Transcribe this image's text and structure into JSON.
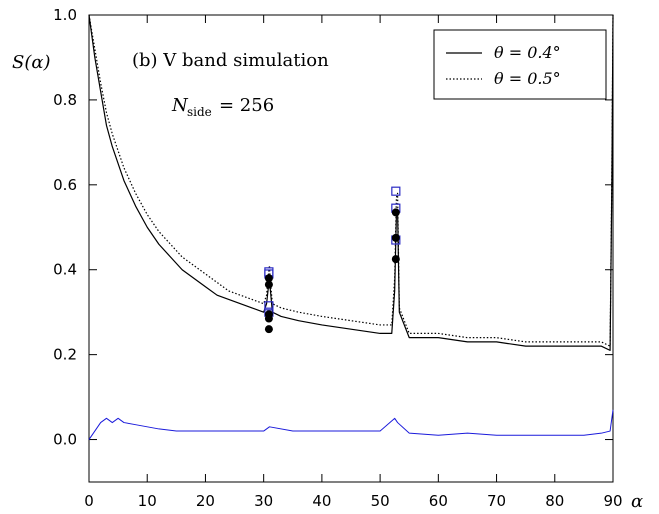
{
  "chart_data": {
    "type": "line",
    "title": "(b) V band simulation",
    "annotation": "N",
    "annotation_sub": "side",
    "annotation_value": "= 256",
    "ylabel": "S(α)",
    "xlabel": "α",
    "xlim": [
      0,
      90
    ],
    "ylim": [
      -0.1,
      1.0
    ],
    "x_ticks": [
      0,
      10,
      20,
      30,
      40,
      50,
      60,
      70,
      80,
      90
    ],
    "y_ticks": [
      0.0,
      0.2,
      0.4,
      0.6,
      0.8,
      1.0
    ],
    "y_tick_labels": [
      "0.0",
      "0.2",
      "0.4",
      "0.6",
      "0.8",
      "1.0"
    ],
    "legend_position": "top-right",
    "grid": false,
    "colors": {
      "solid": "#000000",
      "dotted": "#000000",
      "difference": "#1a1adb",
      "squares": "#2a2ac4",
      "dots": "#000000"
    },
    "series": [
      {
        "name": "θ = 0.4°",
        "style": "solid",
        "x": [
          0,
          1,
          2,
          3,
          4,
          5,
          6,
          8,
          10,
          12,
          14,
          16,
          18,
          20,
          22,
          24,
          26,
          28,
          30,
          30.5,
          30.9,
          31,
          31.1,
          31.5,
          33,
          36,
          40,
          45,
          50,
          52,
          52.5,
          52.8,
          53,
          53.3,
          55,
          60,
          65,
          70,
          75,
          80,
          85,
          88,
          89.5,
          89.8,
          90
        ],
        "y": [
          1.0,
          0.9,
          0.82,
          0.74,
          0.69,
          0.65,
          0.61,
          0.55,
          0.5,
          0.46,
          0.43,
          0.4,
          0.38,
          0.36,
          0.34,
          0.33,
          0.32,
          0.31,
          0.3,
          0.32,
          0.37,
          0.38,
          0.36,
          0.3,
          0.29,
          0.28,
          0.27,
          0.26,
          0.25,
          0.25,
          0.35,
          0.53,
          0.54,
          0.3,
          0.24,
          0.24,
          0.23,
          0.23,
          0.22,
          0.22,
          0.22,
          0.22,
          0.21,
          0.6,
          1.0
        ]
      },
      {
        "name": "θ = 0.5°",
        "style": "dotted",
        "x": [
          0,
          1,
          2,
          3,
          4,
          5,
          6,
          8,
          10,
          12,
          14,
          16,
          18,
          20,
          22,
          24,
          26,
          28,
          30,
          30.5,
          30.9,
          31,
          31.1,
          31.5,
          33,
          36,
          40,
          45,
          50,
          52,
          52.5,
          52.8,
          53,
          53.3,
          55,
          60,
          65,
          70,
          75,
          80,
          85,
          88,
          89.5,
          89.8,
          90
        ],
        "y": [
          1.0,
          0.92,
          0.84,
          0.77,
          0.72,
          0.68,
          0.64,
          0.58,
          0.53,
          0.49,
          0.46,
          0.43,
          0.41,
          0.39,
          0.37,
          0.35,
          0.34,
          0.33,
          0.32,
          0.34,
          0.4,
          0.41,
          0.38,
          0.32,
          0.31,
          0.3,
          0.29,
          0.28,
          0.27,
          0.27,
          0.38,
          0.57,
          0.58,
          0.31,
          0.25,
          0.25,
          0.24,
          0.24,
          0.23,
          0.23,
          0.23,
          0.23,
          0.22,
          0.62,
          1.0
        ]
      },
      {
        "style": "difference",
        "x": [
          0,
          1,
          2,
          3,
          4,
          5,
          6,
          8,
          10,
          12,
          15,
          18,
          20,
          25,
          30,
          31,
          35,
          40,
          45,
          50,
          52.5,
          53,
          55,
          60,
          65,
          70,
          75,
          80,
          85,
          88,
          89.5,
          90
        ],
        "y": [
          0.0,
          0.02,
          0.04,
          0.05,
          0.04,
          0.05,
          0.04,
          0.035,
          0.03,
          0.025,
          0.02,
          0.02,
          0.02,
          0.02,
          0.02,
          0.03,
          0.02,
          0.02,
          0.02,
          0.02,
          0.05,
          0.04,
          0.015,
          0.01,
          0.015,
          0.01,
          0.01,
          0.01,
          0.01,
          0.015,
          0.02,
          0.07
        ]
      }
    ],
    "square_markers": {
      "x": [
        30.9,
        30.9,
        30.9,
        30.9,
        52.7,
        52.7,
        52.7
      ],
      "y": [
        0.395,
        0.39,
        0.315,
        0.3,
        0.585,
        0.545,
        0.47
      ]
    },
    "dot_markers": {
      "x": [
        30.9,
        30.9,
        30.9,
        30.9,
        30.9,
        52.7,
        52.7,
        52.7
      ],
      "y": [
        0.38,
        0.365,
        0.295,
        0.285,
        0.26,
        0.535,
        0.475,
        0.425
      ]
    }
  }
}
